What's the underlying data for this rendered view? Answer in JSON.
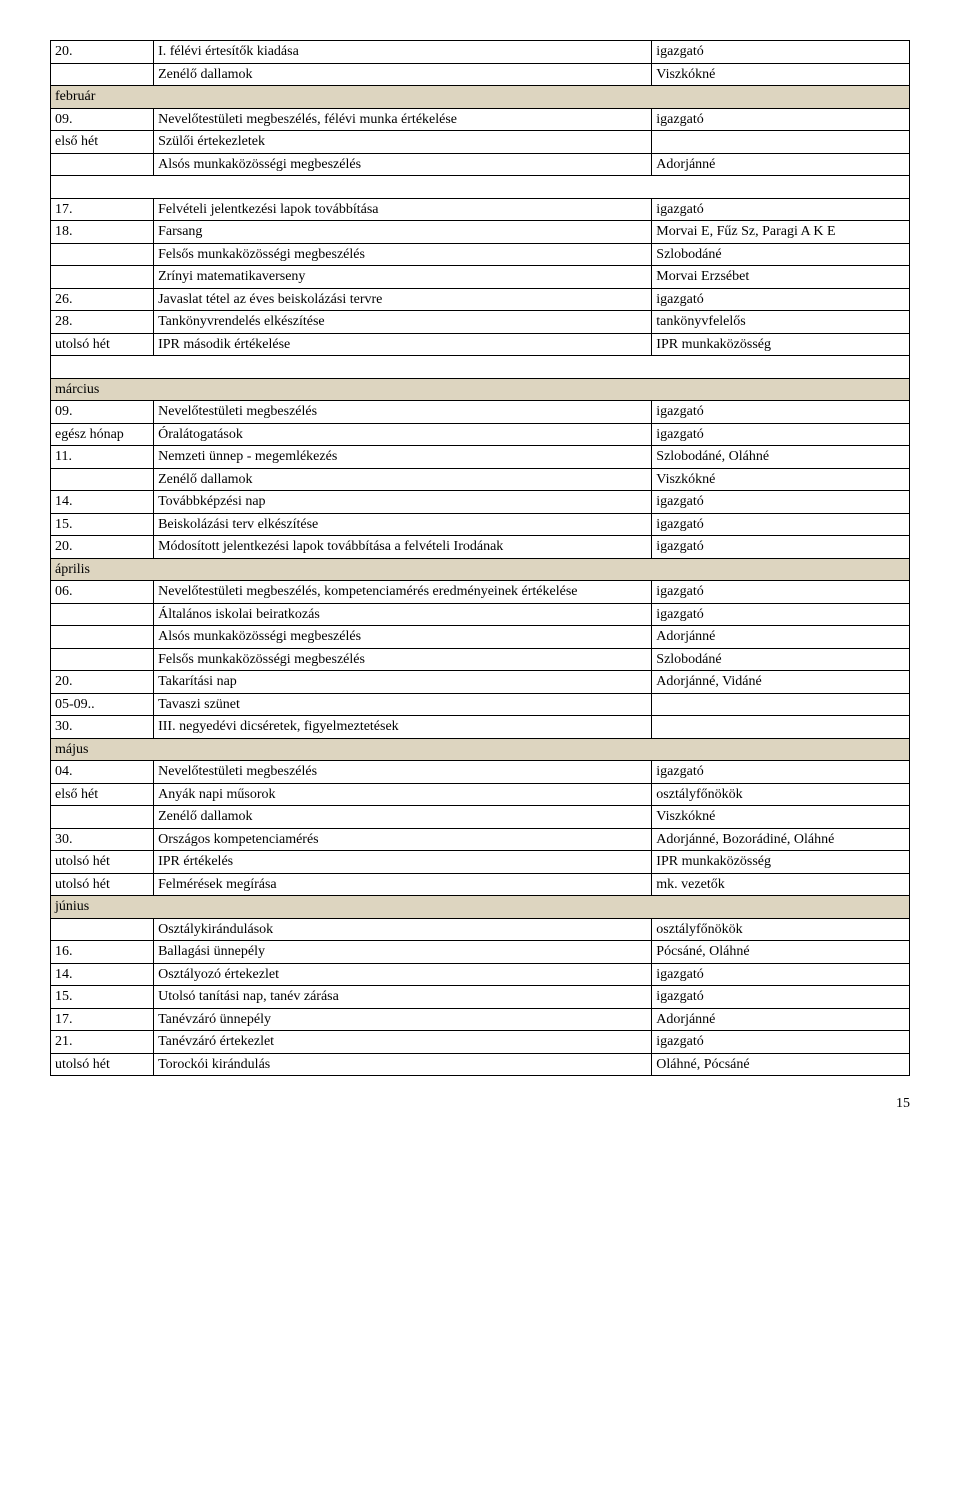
{
  "colors": {
    "month_bg": "#ddd5c0",
    "border": "#000000",
    "text": "#000000",
    "background": "#ffffff"
  },
  "columns": {
    "col1_width": "12%",
    "col2_width": "58%",
    "col3_width": "30%"
  },
  "rows": [
    {
      "type": "data",
      "c1": "20.",
      "c2": "I. félévi értesítők kiadása",
      "c3": "igazgató"
    },
    {
      "type": "data",
      "c1": "",
      "c2": "Zenélő dallamok",
      "c3": "Viszkókné"
    },
    {
      "type": "month",
      "label": "február"
    },
    {
      "type": "data",
      "c1": "09.",
      "c2": "Nevelőtestületi megbeszélés, félévi munka értékelése",
      "c3": "igazgató"
    },
    {
      "type": "data",
      "c1": "első hét",
      "c2": "Szülői értekezletek",
      "c3": ""
    },
    {
      "type": "data",
      "c1": "",
      "c2": "Alsós munkaközösségi megbeszélés",
      "c3": "Adorjánné"
    },
    {
      "type": "blank"
    },
    {
      "type": "data",
      "c1": "17.",
      "c2": "Felvételi jelentkezési lapok továbbítása",
      "c3": "igazgató"
    },
    {
      "type": "data",
      "c1": "18.",
      "c2": "Farsang",
      "c3": "Morvai E, Fűz Sz, Paragi A K E"
    },
    {
      "type": "data",
      "c1": "",
      "c2": "Felsős munkaközösségi megbeszélés",
      "c3": "Szlobodáné"
    },
    {
      "type": "data",
      "c1": "",
      "c2": "Zrínyi matematikaverseny",
      "c3": "Morvai Erzsébet"
    },
    {
      "type": "data",
      "c1": "26.",
      "c2": "Javaslat tétel az éves beiskolázási tervre",
      "c3": "igazgató"
    },
    {
      "type": "data",
      "c1": "28.",
      "c2": "Tankönyvrendelés elkészítése",
      "c3": "tankönyvfelelős"
    },
    {
      "type": "data",
      "c1": "utolsó hét",
      "c2": "IPR második értékelése",
      "c3": "IPR munkaközösség"
    },
    {
      "type": "blank"
    },
    {
      "type": "month",
      "label": "március"
    },
    {
      "type": "data",
      "c1": "09.",
      "c2": "Nevelőtestületi megbeszélés",
      "c3": "igazgató"
    },
    {
      "type": "data",
      "c1": "egész hónap",
      "c2": "Óralátogatások",
      "c3": "igazgató"
    },
    {
      "type": "data",
      "c1": "11.",
      "c2": "Nemzeti ünnep - megemlékezés",
      "c3": "Szlobodáné, Oláhné"
    },
    {
      "type": "data",
      "c1": "",
      "c2": "Zenélő dallamok",
      "c3": "Viszkókné"
    },
    {
      "type": "data",
      "c1": "14.",
      "c2": "Továbbképzési nap",
      "c3": "igazgató"
    },
    {
      "type": "data",
      "c1": "15.",
      "c2": "Beiskolázási terv elkészítése",
      "c3": "igazgató"
    },
    {
      "type": "data",
      "c1": "20.",
      "c2": "Módosított jelentkezési lapok továbbítása a felvételi Irodának",
      "c3": "igazgató"
    },
    {
      "type": "month",
      "label": "április"
    },
    {
      "type": "data",
      "c1": "06.",
      "c2": "Nevelőtestületi megbeszélés, kompetenciamérés eredményeinek értékelése",
      "c3": "igazgató"
    },
    {
      "type": "data",
      "c1": "",
      "c2": "Általános iskolai beiratkozás",
      "c3": "igazgató"
    },
    {
      "type": "data",
      "c1": "",
      "c2": "Alsós munkaközösségi megbeszélés",
      "c3": "Adorjánné"
    },
    {
      "type": "data",
      "c1": "",
      "c2": "Felsős munkaközösségi megbeszélés",
      "c3": "Szlobodáné"
    },
    {
      "type": "data",
      "c1": "20.",
      "c2": "Takarítási nap",
      "c3": "Adorjánné, Vidáné"
    },
    {
      "type": "data",
      "c1": "05-09..",
      "c2": "Tavaszi szünet",
      "c3": ""
    },
    {
      "type": "data",
      "c1": "30.",
      "c2": "III. negyedévi dicséretek, figyelmeztetések",
      "c3": ""
    },
    {
      "type": "month",
      "label": "május"
    },
    {
      "type": "data",
      "c1": "04.",
      "c2": "Nevelőtestületi megbeszélés",
      "c3": "igazgató"
    },
    {
      "type": "data",
      "c1": "első hét",
      "c2": "Anyák napi műsorok",
      "c3": "osztályfőnökök"
    },
    {
      "type": "data",
      "c1": "",
      "c2": "Zenélő dallamok",
      "c3": "Viszkókné"
    },
    {
      "type": "data",
      "c1": "30.",
      "c2": "Országos kompetenciamérés",
      "c3": "Adorjánné, Bozorádiné, Oláhné"
    },
    {
      "type": "data",
      "c1": "utolsó hét",
      "c2": "IPR értékelés",
      "c3": "IPR munkaközösség"
    },
    {
      "type": "data",
      "c1": "utolsó hét",
      "c2": "Felmérések megírása",
      "c3": "mk. vezetők"
    },
    {
      "type": "month",
      "label": "június"
    },
    {
      "type": "data",
      "c1": "",
      "c2": "Osztálykirándulások",
      "c3": "osztályfőnökök"
    },
    {
      "type": "data",
      "c1": "16.",
      "c2": "Ballagási ünnepély",
      "c3": "Pócsáné, Oláhné"
    },
    {
      "type": "data",
      "c1": "14.",
      "c2": "Osztályozó értekezlet",
      "c3": "igazgató"
    },
    {
      "type": "data",
      "c1": "15.",
      "c2": "Utolsó tanítási nap, tanév zárása",
      "c3": "igazgató"
    },
    {
      "type": "data",
      "c1": "17.",
      "c2": "Tanévzáró ünnepély",
      "c3": "Adorjánné"
    },
    {
      "type": "data",
      "c1": "21.",
      "c2": "Tanévzáró értekezlet",
      "c3": "igazgató"
    },
    {
      "type": "data",
      "c1": "utolsó hét",
      "c2": "Torockói kirándulás",
      "c3": "Oláhné, Pócsáné"
    }
  ],
  "page_number": "15"
}
